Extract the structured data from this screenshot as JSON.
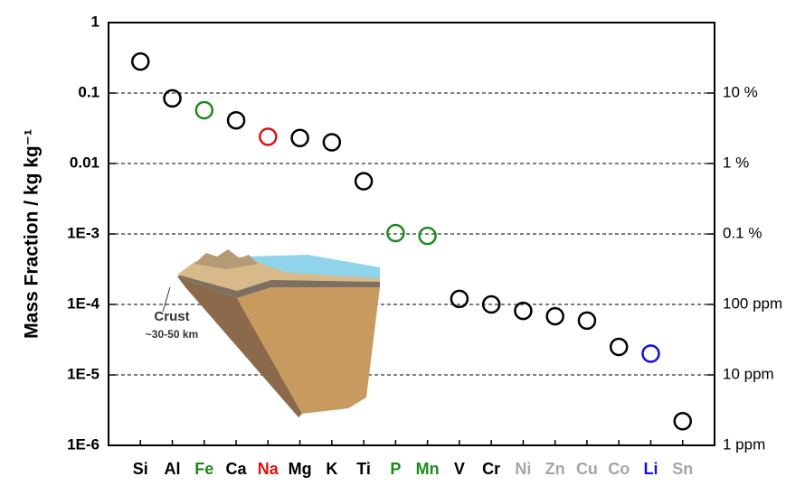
{
  "chart_data": {
    "type": "scatter",
    "ylabel": "Mass Fraction  /  kg kg⁻¹",
    "categories": [
      "Si",
      "Al",
      "Fe",
      "Ca",
      "Na",
      "Mg",
      "K",
      "Ti",
      "P",
      "Mn",
      "V",
      "Cr",
      "Ni",
      "Zn",
      "Cu",
      "Co",
      "Li",
      "Sn"
    ],
    "category_colors": [
      "#000000",
      "#000000",
      "#1e8a1e",
      "#000000",
      "#e01010",
      "#000000",
      "#000000",
      "#000000",
      "#1e8a1e",
      "#1e8a1e",
      "#000000",
      "#000000",
      "#a6a6a6",
      "#a6a6a6",
      "#a6a6a6",
      "#a6a6a6",
      "#1010e0",
      "#a6a6a6"
    ],
    "values": [
      0.28,
      0.084,
      0.057,
      0.041,
      0.024,
      0.023,
      0.02,
      0.0056,
      0.00103,
      0.00094,
      0.00012,
      0.0001,
      8.1e-05,
      6.8e-05,
      5.9e-05,
      2.5e-05,
      2e-05,
      2.2e-06
    ],
    "colors": [
      "#000000",
      "#000000",
      "#1e8a1e",
      "#000000",
      "#e01010",
      "#000000",
      "#000000",
      "#000000",
      "#1e8a1e",
      "#1e8a1e",
      "#000000",
      "#000000",
      "#000000",
      "#000000",
      "#000000",
      "#000000",
      "#1010e0",
      "#000000"
    ],
    "log_scale": true,
    "ylim": [
      1e-06,
      1
    ],
    "yticks": [
      1,
      0.1,
      0.01,
      {
        "value": 0.001,
        "label": "1E-3"
      },
      {
        "value": 0.0001,
        "label": "1E-4"
      },
      {
        "value": 1e-05,
        "label": "1E-5"
      },
      {
        "value": 1e-06,
        "label": "1E-6"
      }
    ],
    "y2lim": [
      1e-06,
      1
    ],
    "y2ticks": [
      {
        "value": 0.1,
        "label": "10 %"
      },
      {
        "value": 0.01,
        "label": "1 %"
      },
      {
        "value": 0.001,
        "label": "0.1 %"
      },
      {
        "value": 0.0001,
        "label": "100 ppm"
      },
      {
        "value": 1e-05,
        "label": "10 ppm"
      },
      {
        "value": 1e-06,
        "label": "1 ppm"
      }
    ],
    "grid": true,
    "annotations": [
      "Crust",
      "~30-50 km"
    ]
  }
}
